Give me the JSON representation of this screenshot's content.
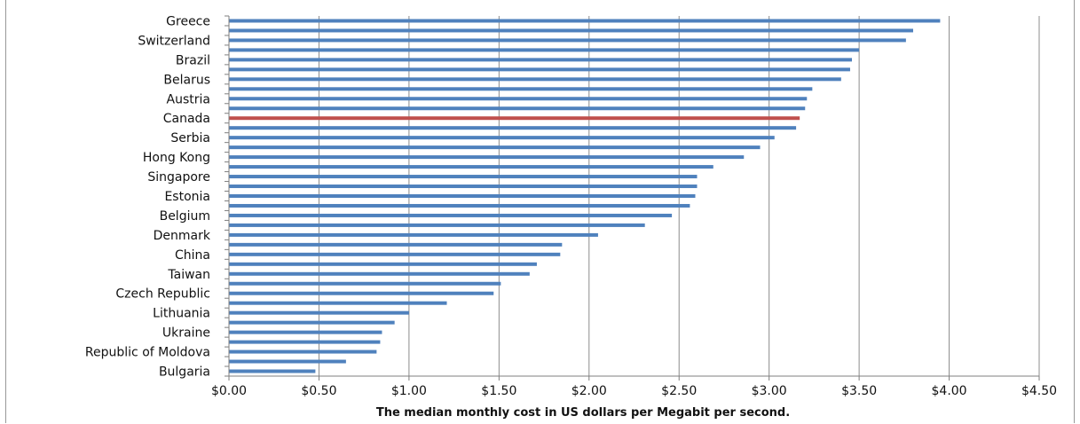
{
  "chart_data": {
    "type": "bar",
    "orientation": "horizontal",
    "title": "",
    "xlabel": "The median monthly cost in US dollars per Megabit per second.",
    "ylabel": "",
    "xlim": [
      0,
      4.5
    ],
    "x_ticks": [
      "$0.00",
      "$0.50",
      "$1.00",
      "$1.50",
      "$2.00",
      "$2.50",
      "$3.00",
      "$3.50",
      "$4.00",
      "$4.50"
    ],
    "tick_values": [
      0,
      0.5,
      1.0,
      1.5,
      2.0,
      2.5,
      3.0,
      3.5,
      4.0,
      4.5
    ],
    "grid": "vertical",
    "bar_color": "#4f81bd",
    "highlight_color": "#c0504d",
    "highlight_index": 10,
    "category_labels": [
      "Greece",
      "Switzerland",
      "Brazil",
      "Belarus",
      "Austria",
      "Canada",
      "Serbia",
      "Hong Kong",
      "Singapore",
      "Estonia",
      "Belgium",
      "Denmark",
      "China",
      "Taiwan",
      "Czech Republic",
      "Lithuania",
      "Ukraine",
      "Republic of Moldova",
      "Bulgaria"
    ],
    "values": [
      3.95,
      3.8,
      3.76,
      3.5,
      3.46,
      3.45,
      3.4,
      3.24,
      3.21,
      3.2,
      3.17,
      3.15,
      3.03,
      2.95,
      2.86,
      2.69,
      2.6,
      2.6,
      2.59,
      2.56,
      2.46,
      2.31,
      2.05,
      1.85,
      1.84,
      1.71,
      1.67,
      1.51,
      1.47,
      1.21,
      1.0,
      0.92,
      0.85,
      0.84,
      0.82,
      0.65,
      0.48
    ]
  }
}
